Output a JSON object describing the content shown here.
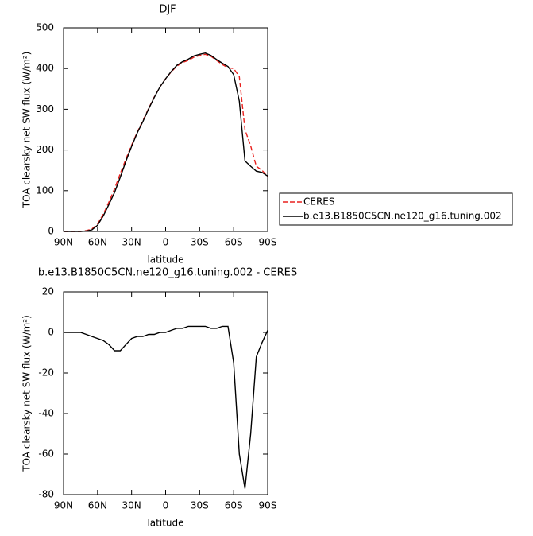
{
  "chart_data": [
    {
      "type": "line",
      "title": "DJF",
      "xlabel": "latitude",
      "ylabel": "TOA clearsky net SW flux (W/m²)",
      "x": [
        90,
        85,
        80,
        75,
        70,
        65,
        60,
        55,
        50,
        45,
        40,
        35,
        30,
        25,
        20,
        15,
        10,
        5,
        0,
        -5,
        -10,
        -15,
        -20,
        -25,
        -30,
        -35,
        -40,
        -45,
        -50,
        -55,
        -60,
        -65,
        -70,
        -75,
        -80,
        -85,
        -90
      ],
      "xlim": [
        90,
        -90
      ],
      "xticks": [
        {
          "value": 90,
          "label": "90N"
        },
        {
          "value": 60,
          "label": "60N"
        },
        {
          "value": 30,
          "label": "30N"
        },
        0,
        {
          "value": -30,
          "label": "30S"
        },
        {
          "value": -60,
          "label": "60S"
        },
        {
          "value": -90,
          "label": "90S"
        }
      ],
      "ylim": [
        0,
        500
      ],
      "yticks": [
        0,
        100,
        200,
        300,
        400,
        500
      ],
      "legend": "outside-right",
      "series": [
        {
          "name": "CERES",
          "color": "#e8211e",
          "dash": true,
          "values": [
            0,
            0,
            0,
            0,
            2,
            6,
            18,
            42,
            72,
            105,
            142,
            178,
            212,
            244,
            272,
            302,
            330,
            355,
            375,
            392,
            406,
            415,
            420,
            428,
            432,
            435,
            430,
            420,
            410,
            402,
            400,
            380,
            250,
            210,
            160,
            150,
            135
          ]
        },
        {
          "name": "b.e13.B1850C5CN.ne120_g16.tuning.002",
          "color": "#000000",
          "dash": false,
          "values": [
            0,
            0,
            0,
            0,
            1,
            4,
            15,
            38,
            66,
            96,
            133,
            172,
            209,
            242,
            270,
            301,
            329,
            355,
            375,
            393,
            408,
            417,
            423,
            431,
            435,
            438,
            432,
            422,
            413,
            405,
            385,
            320,
            173,
            160,
            148,
            145,
            136
          ]
        }
      ]
    },
    {
      "type": "line",
      "title": "b.e13.B1850C5CN.ne120_g16.tuning.002 - CERES",
      "xlabel": "latitude",
      "ylabel": "TOA clearsky net SW flux (W/m²)",
      "x": [
        90,
        85,
        80,
        75,
        70,
        65,
        60,
        55,
        50,
        45,
        40,
        35,
        30,
        25,
        20,
        15,
        10,
        5,
        0,
        -5,
        -10,
        -15,
        -20,
        -25,
        -30,
        -35,
        -40,
        -45,
        -50,
        -55,
        -60,
        -65,
        -70,
        -75,
        -80,
        -85,
        -90
      ],
      "xlim": [
        90,
        -90
      ],
      "xticks": [
        {
          "value": 90,
          "label": "90N"
        },
        {
          "value": 60,
          "label": "60N"
        },
        {
          "value": 30,
          "label": "30N"
        },
        0,
        {
          "value": -30,
          "label": "30S"
        },
        {
          "value": -60,
          "label": "60S"
        },
        {
          "value": -90,
          "label": "90S"
        }
      ],
      "ylim": [
        -80,
        20
      ],
      "yticks": [
        -80,
        -60,
        -40,
        -20,
        0,
        20
      ],
      "series": [
        {
          "color": "#000000",
          "dash": false,
          "values": [
            0,
            0,
            0,
            0,
            -1,
            -2,
            -3,
            -4,
            -6,
            -9,
            -9,
            -6,
            -3,
            -2,
            -2,
            -1,
            -1,
            0,
            0,
            1,
            2,
            2,
            3,
            3,
            3,
            3,
            2,
            2,
            3,
            3,
            -15,
            -60,
            -77,
            -50,
            -12,
            -5,
            1
          ]
        }
      ]
    }
  ]
}
